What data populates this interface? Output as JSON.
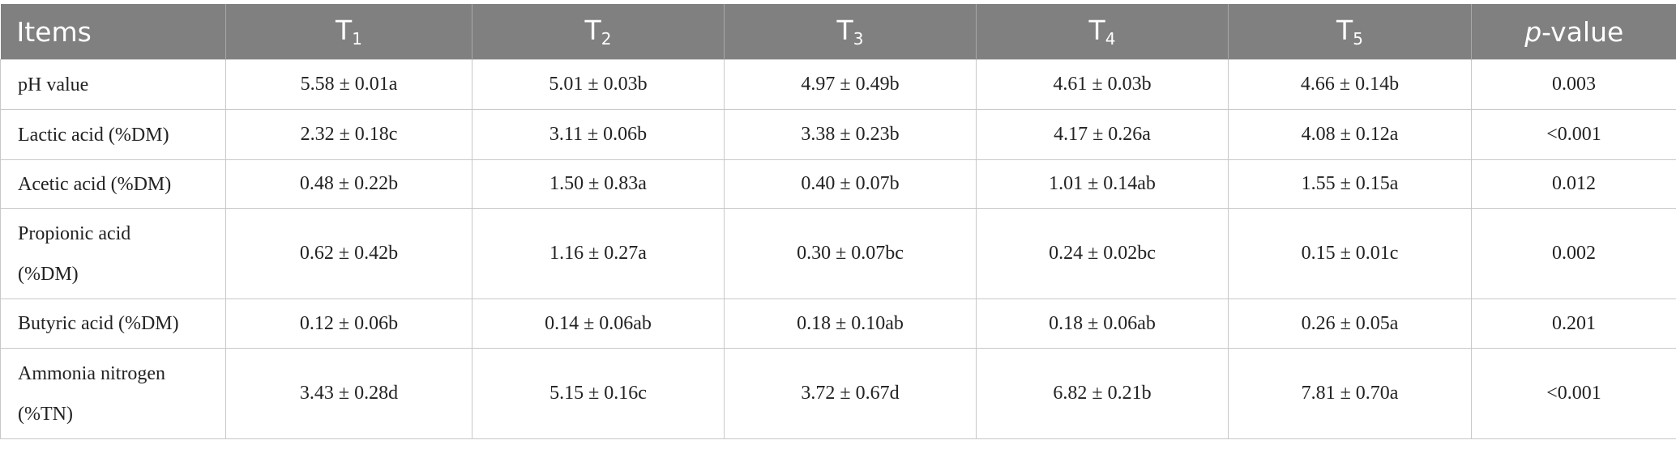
{
  "table": {
    "header": [
      {
        "text": "Items"
      },
      {
        "text": "T",
        "sub": "1"
      },
      {
        "text": "T",
        "sub": "2"
      },
      {
        "text": "T",
        "sub": "3"
      },
      {
        "text": "T",
        "sub": "4"
      },
      {
        "text": "T",
        "sub": "5"
      },
      {
        "italic": "p",
        "text": "-value"
      }
    ],
    "rows": [
      [
        "pH value",
        "5.58 ± 0.01a",
        "5.01 ± 0.03b",
        "4.97 ± 0.49b",
        "4.61 ± 0.03b",
        "4.66 ± 0.14b",
        "0.003"
      ],
      [
        "Lactic acid (%DM)",
        "2.32 ± 0.18c",
        "3.11 ± 0.06b",
        "3.38 ± 0.23b",
        "4.17 ± 0.26a",
        "4.08 ± 0.12a",
        "<0.001"
      ],
      [
        "Acetic acid (%DM)",
        "0.48 ± 0.22b",
        "1.50 ± 0.83a",
        "0.40 ± 0.07b",
        "1.01 ± 0.14ab",
        "1.55 ± 0.15a",
        "0.012"
      ],
      [
        "Propionic acid (%DM)",
        "0.62 ± 0.42b",
        "1.16 ± 0.27a",
        "0.30 ± 0.07bc",
        "0.24 ± 0.02bc",
        "0.15 ± 0.01c",
        "0.002"
      ],
      [
        "Butyric acid (%DM)",
        "0.12 ± 0.06b",
        "0.14 ± 0.06ab",
        "0.18 ± 0.10ab",
        "0.18 ± 0.06ab",
        "0.26 ± 0.05a",
        "0.201"
      ],
      [
        "Ammonia nitrogen (%TN)",
        "3.43 ± 0.28d",
        "5.15 ± 0.16c",
        "3.72 ± 0.67d",
        "6.82 ± 0.21b",
        "7.81 ± 0.70a",
        "<0.001"
      ]
    ]
  }
}
